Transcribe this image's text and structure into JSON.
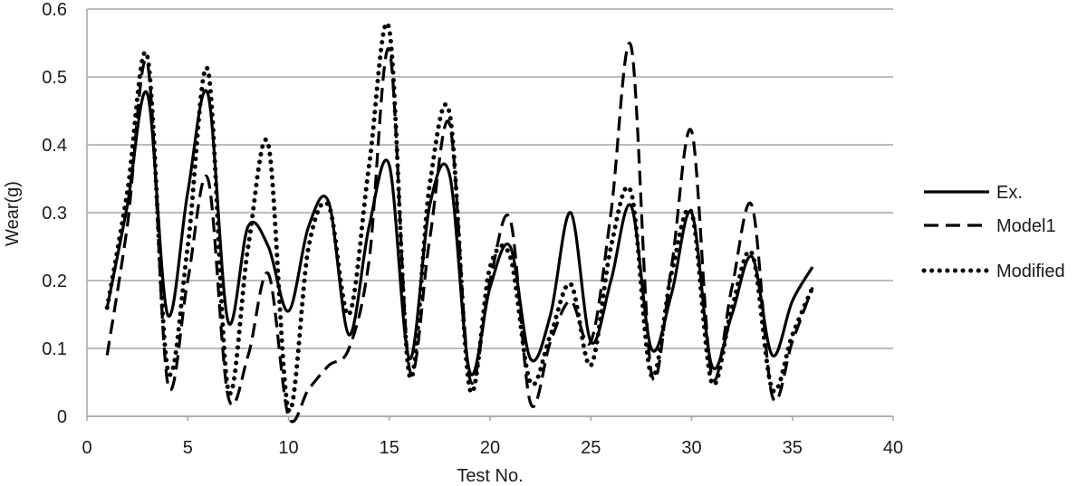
{
  "chart_data": {
    "type": "line",
    "title": "",
    "xlabel": "Test No.",
    "ylabel": "Wear(g)",
    "xlim": [
      0,
      40
    ],
    "ylim": [
      0,
      0.6
    ],
    "x_ticks": [
      "0",
      "5",
      "10",
      "15",
      "20",
      "25",
      "30",
      "35",
      "40"
    ],
    "y_ticks": [
      "0",
      "0.1",
      "0.2",
      "0.3",
      "0.4",
      "0.5",
      "0.6"
    ],
    "grid": "horizontal",
    "legend_position": "right",
    "x": [
      1,
      2,
      3,
      4,
      5,
      6,
      7,
      8,
      9,
      10,
      11,
      12,
      13,
      14,
      15,
      16,
      17,
      18,
      19,
      20,
      21,
      22,
      23,
      24,
      25,
      26,
      27,
      28,
      29,
      30,
      31,
      32,
      33,
      34,
      35,
      36
    ],
    "series": [
      {
        "name": "Ex.",
        "style": "solid",
        "color": "#000000",
        "values": [
          0.16,
          0.31,
          0.475,
          0.15,
          0.33,
          0.475,
          0.14,
          0.28,
          0.25,
          0.155,
          0.28,
          0.315,
          0.12,
          0.28,
          0.37,
          0.085,
          0.31,
          0.355,
          0.065,
          0.19,
          0.25,
          0.085,
          0.15,
          0.3,
          0.11,
          0.2,
          0.31,
          0.1,
          0.18,
          0.3,
          0.075,
          0.15,
          0.235,
          0.09,
          0.17,
          0.22
        ]
      },
      {
        "name": "Model1",
        "style": "dashed",
        "color": "#000000",
        "values": [
          0.09,
          0.28,
          0.52,
          0.05,
          0.2,
          0.35,
          0.03,
          0.09,
          0.21,
          0.0,
          0.04,
          0.075,
          0.1,
          0.23,
          0.54,
          0.07,
          0.26,
          0.43,
          0.055,
          0.2,
          0.29,
          0.02,
          0.11,
          0.17,
          0.11,
          0.3,
          0.545,
          0.065,
          0.22,
          0.42,
          0.06,
          0.19,
          0.31,
          0.03,
          0.11,
          0.19
        ]
      },
      {
        "name": "Modified",
        "style": "dotted",
        "color": "#000000",
        "values": [
          0.16,
          0.33,
          0.53,
          0.07,
          0.25,
          0.51,
          0.04,
          0.25,
          0.4,
          0.01,
          0.25,
          0.31,
          0.15,
          0.37,
          0.57,
          0.06,
          0.34,
          0.445,
          0.04,
          0.22,
          0.235,
          0.05,
          0.12,
          0.195,
          0.075,
          0.25,
          0.33,
          0.06,
          0.21,
          0.3,
          0.05,
          0.16,
          0.24,
          0.04,
          0.12,
          0.19
        ]
      }
    ]
  }
}
